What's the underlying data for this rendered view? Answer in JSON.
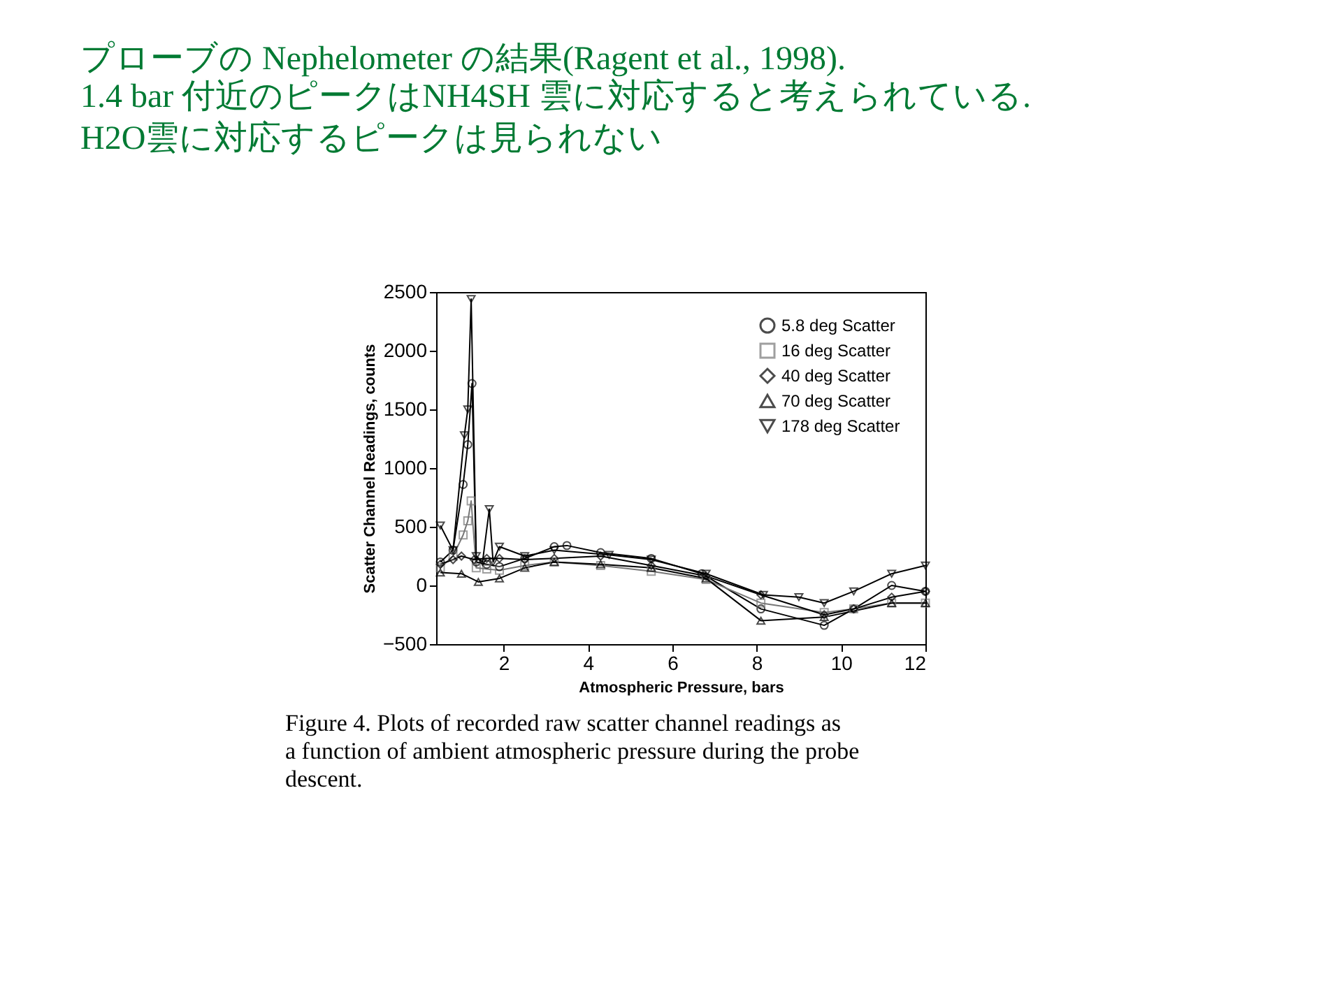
{
  "chart_data": {
    "type": "line",
    "title": "プローブの Nephelometer の結果(Ragent et al., 1998).",
    "subtitle": "1.4 bar 付近のピークはNH4SH 雲に対応すると考えられている.\nH2O雲に対応するピークは見られない",
    "xlabel": "Atmospheric  Pressure,  bars",
    "ylabel": "Scatter  Channel  Readings,  counts",
    "xlim": [
      0.4,
      12
    ],
    "xticks": [
      2,
      4,
      6,
      8,
      10,
      12
    ],
    "ylim": [
      -500,
      2500
    ],
    "yticks": [
      -500,
      0,
      500,
      1000,
      1500,
      2000,
      2500
    ],
    "legend": "top right",
    "grid": false,
    "series": [
      {
        "name": "5.8 deg Scatter",
        "color": "#000000",
        "marker": "circle",
        "x": [
          0.5,
          0.8,
          1.04,
          1.15,
          1.25,
          1.35,
          1.6,
          1.9,
          2.5,
          3.2,
          3.5,
          4.3,
          5.5,
          6.7,
          8.1,
          9.6,
          10.3,
          11.2,
          12
        ],
        "values": [
          200,
          300,
          860,
          1200,
          1720,
          200,
          180,
          160,
          230,
          330,
          340,
          280,
          230,
          100,
          -200,
          -340,
          -200,
          0,
          -50
        ]
      },
      {
        "name": "16 deg Scatter",
        "color": "#777777",
        "marker": "square",
        "x": [
          0.5,
          0.8,
          1.04,
          1.15,
          1.23,
          1.35,
          1.6,
          1.9,
          2.5,
          3.2,
          4.3,
          5.5,
          6.8,
          8.1,
          9.6,
          10.3,
          11.2,
          12
        ],
        "values": [
          150,
          250,
          430,
          550,
          720,
          150,
          140,
          130,
          170,
          200,
          170,
          120,
          50,
          -150,
          -230,
          -200,
          -150,
          -150
        ]
      },
      {
        "name": "40 deg Scatter",
        "color": "#000000",
        "marker": "diamond",
        "x": [
          0.5,
          0.8,
          1.0,
          1.3,
          1.6,
          1.9,
          2.5,
          3.2,
          4.3,
          5.5,
          6.8,
          8.1,
          9.6,
          10.3,
          11.2,
          12
        ],
        "values": [
          180,
          220,
          250,
          220,
          230,
          230,
          220,
          230,
          250,
          170,
          80,
          -80,
          -250,
          -200,
          -100,
          -50
        ]
      },
      {
        "name": "70 deg Scatter",
        "color": "#000000",
        "marker": "triangle-up",
        "x": [
          0.5,
          1.0,
          1.4,
          1.9,
          2.5,
          3.2,
          4.3,
          5.5,
          6.8,
          8.1,
          9.6,
          11.2,
          12
        ],
        "values": [
          110,
          100,
          30,
          60,
          150,
          200,
          180,
          150,
          60,
          -300,
          -270,
          -150,
          -150
        ]
      },
      {
        "name": "178 deg Scatter",
        "color": "#000000",
        "marker": "triangle-down",
        "x": [
          0.5,
          0.8,
          1.07,
          1.15,
          1.23,
          1.35,
          1.5,
          1.66,
          1.75,
          1.9,
          2.5,
          3.2,
          4.5,
          5.5,
          6.8,
          8.16,
          9.0,
          9.6,
          10.3,
          11.2,
          12
        ],
        "values": [
          510,
          300,
          1280,
          1500,
          2440,
          250,
          200,
          650,
          200,
          330,
          250,
          300,
          260,
          220,
          100,
          -80,
          -100,
          -150,
          -50,
          100,
          170
        ]
      }
    ],
    "annotations": [
      "Figure 4.    Plots of recorded raw scatter channel readings as a function of ambient atmospheric pressure during the probe descent."
    ]
  }
}
